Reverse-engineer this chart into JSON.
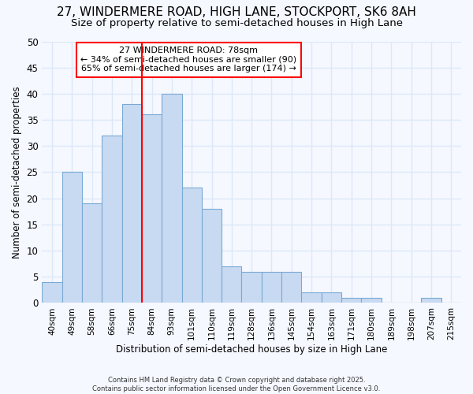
{
  "title": "27, WINDERMERE ROAD, HIGH LANE, STOCKPORT, SK6 8AH",
  "subtitle": "Size of property relative to semi-detached houses in High Lane",
  "xlabel": "Distribution of semi-detached houses by size in High Lane",
  "ylabel": "Number of semi-detached properties",
  "bin_labels": [
    "40sqm",
    "49sqm",
    "58sqm",
    "66sqm",
    "75sqm",
    "84sqm",
    "93sqm",
    "101sqm",
    "110sqm",
    "119sqm",
    "128sqm",
    "136sqm",
    "145sqm",
    "154sqm",
    "163sqm",
    "171sqm",
    "180sqm",
    "189sqm",
    "198sqm",
    "207sqm",
    "215sqm"
  ],
  "values": [
    4,
    25,
    19,
    32,
    38,
    36,
    40,
    22,
    18,
    7,
    6,
    6,
    6,
    2,
    2,
    1,
    1,
    0,
    0,
    1,
    0
  ],
  "bar_color": "#c8daf2",
  "bar_edge_color": "#7aaad4",
  "background_color": "#f5f8ff",
  "grid_color": "#dce8f8",
  "red_line_x": 4.5,
  "annotation_title": "27 WINDERMERE ROAD: 78sqm",
  "annotation_line1": "← 34% of semi-detached houses are smaller (90)",
  "annotation_line2": "65% of semi-detached houses are larger (174) →",
  "ylim": [
    0,
    50
  ],
  "yticks": [
    0,
    5,
    10,
    15,
    20,
    25,
    30,
    35,
    40,
    45,
    50
  ],
  "footer1": "Contains HM Land Registry data © Crown copyright and database right 2025.",
  "footer2": "Contains public sector information licensed under the Open Government Licence v3.0.",
  "title_fontsize": 11,
  "subtitle_fontsize": 9.5
}
